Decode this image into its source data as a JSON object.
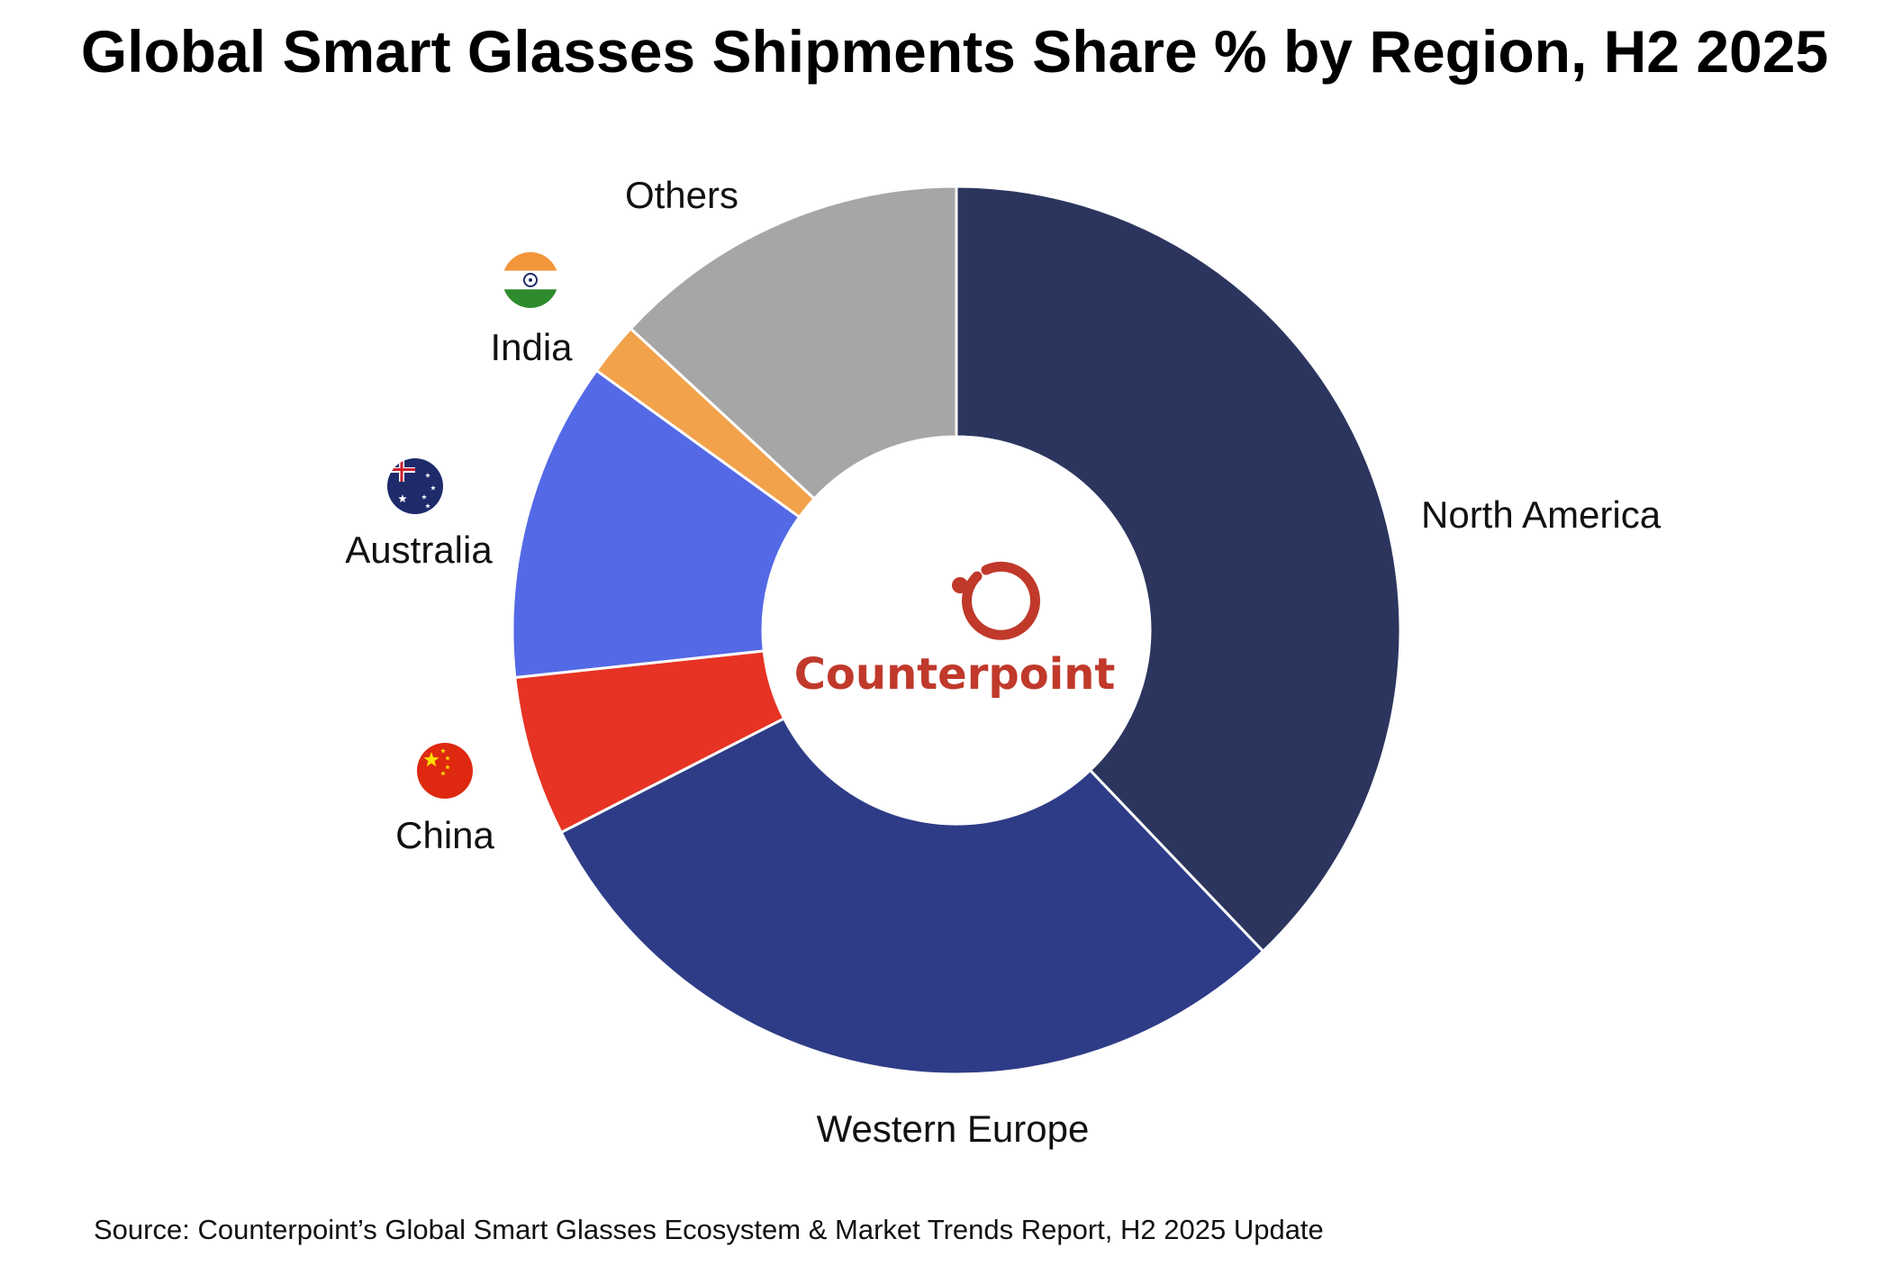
{
  "title": "Global Smart Glasses Shipments Share % by Region, H2 2025",
  "source": "Source: Counterpoint’s Global Smart Glasses Ecosystem & Market Trends Report, H2 2025 Update",
  "brand": {
    "name": "Counterpoint",
    "logo_icon": "counterpoint-logo-icon",
    "color": "#c0392b"
  },
  "chart_data": {
    "type": "pie",
    "donut": true,
    "title": "Global Smart Glasses Shipments Share % by Region, H2 2025",
    "categories": [
      "North America",
      "Western Europe",
      "China",
      "Australia",
      "India",
      "Others"
    ],
    "values": [
      39,
      30.5,
      6,
      12,
      2,
      13.5
    ],
    "colors": [
      "#2c355e",
      "#2e3c87",
      "#e63323",
      "#5469e6",
      "#f2a24b",
      "#a6a6a6"
    ],
    "flag_icons": [
      null,
      null,
      "china-flag-icon",
      "australia-flag-icon",
      "india-flag-icon",
      null
    ],
    "start_angle": "12 o'clock",
    "direction": "clockwise",
    "legend": "none"
  }
}
